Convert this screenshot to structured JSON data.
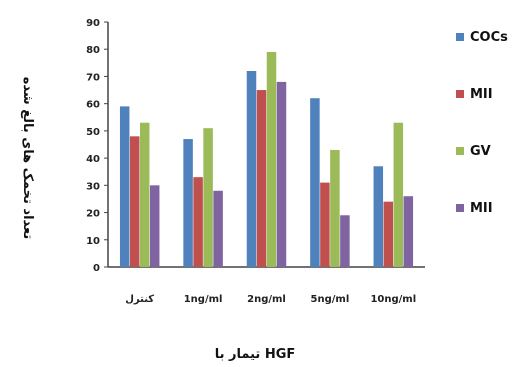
{
  "chart_data": {
    "type": "bar",
    "title": "",
    "xlabel": "تیمار با HGF",
    "ylabel": "تعداد تخمک های بالغ شده",
    "ylim": [
      0,
      90
    ],
    "yticks": [
      0,
      10,
      20,
      30,
      40,
      50,
      60,
      70,
      80,
      90
    ],
    "categories": [
      "کنترل",
      "1ng/ml",
      "2ng/ml",
      "5ng/ml",
      "10ng/ml"
    ],
    "series": [
      {
        "name": "COCs",
        "color": "#4F81BD",
        "values": [
          59,
          47,
          72,
          62,
          37
        ]
      },
      {
        "name": "MII",
        "color": "#C0504D",
        "values": [
          48,
          33,
          65,
          31,
          24
        ]
      },
      {
        "name": "GV",
        "color": "#9BBB59",
        "values": [
          53,
          51,
          79,
          43,
          53
        ]
      },
      {
        "name": "MII",
        "color": "#8064A2",
        "values": [
          30,
          28,
          68,
          19,
          26
        ]
      }
    ],
    "legend_position": "right",
    "grid": false
  }
}
